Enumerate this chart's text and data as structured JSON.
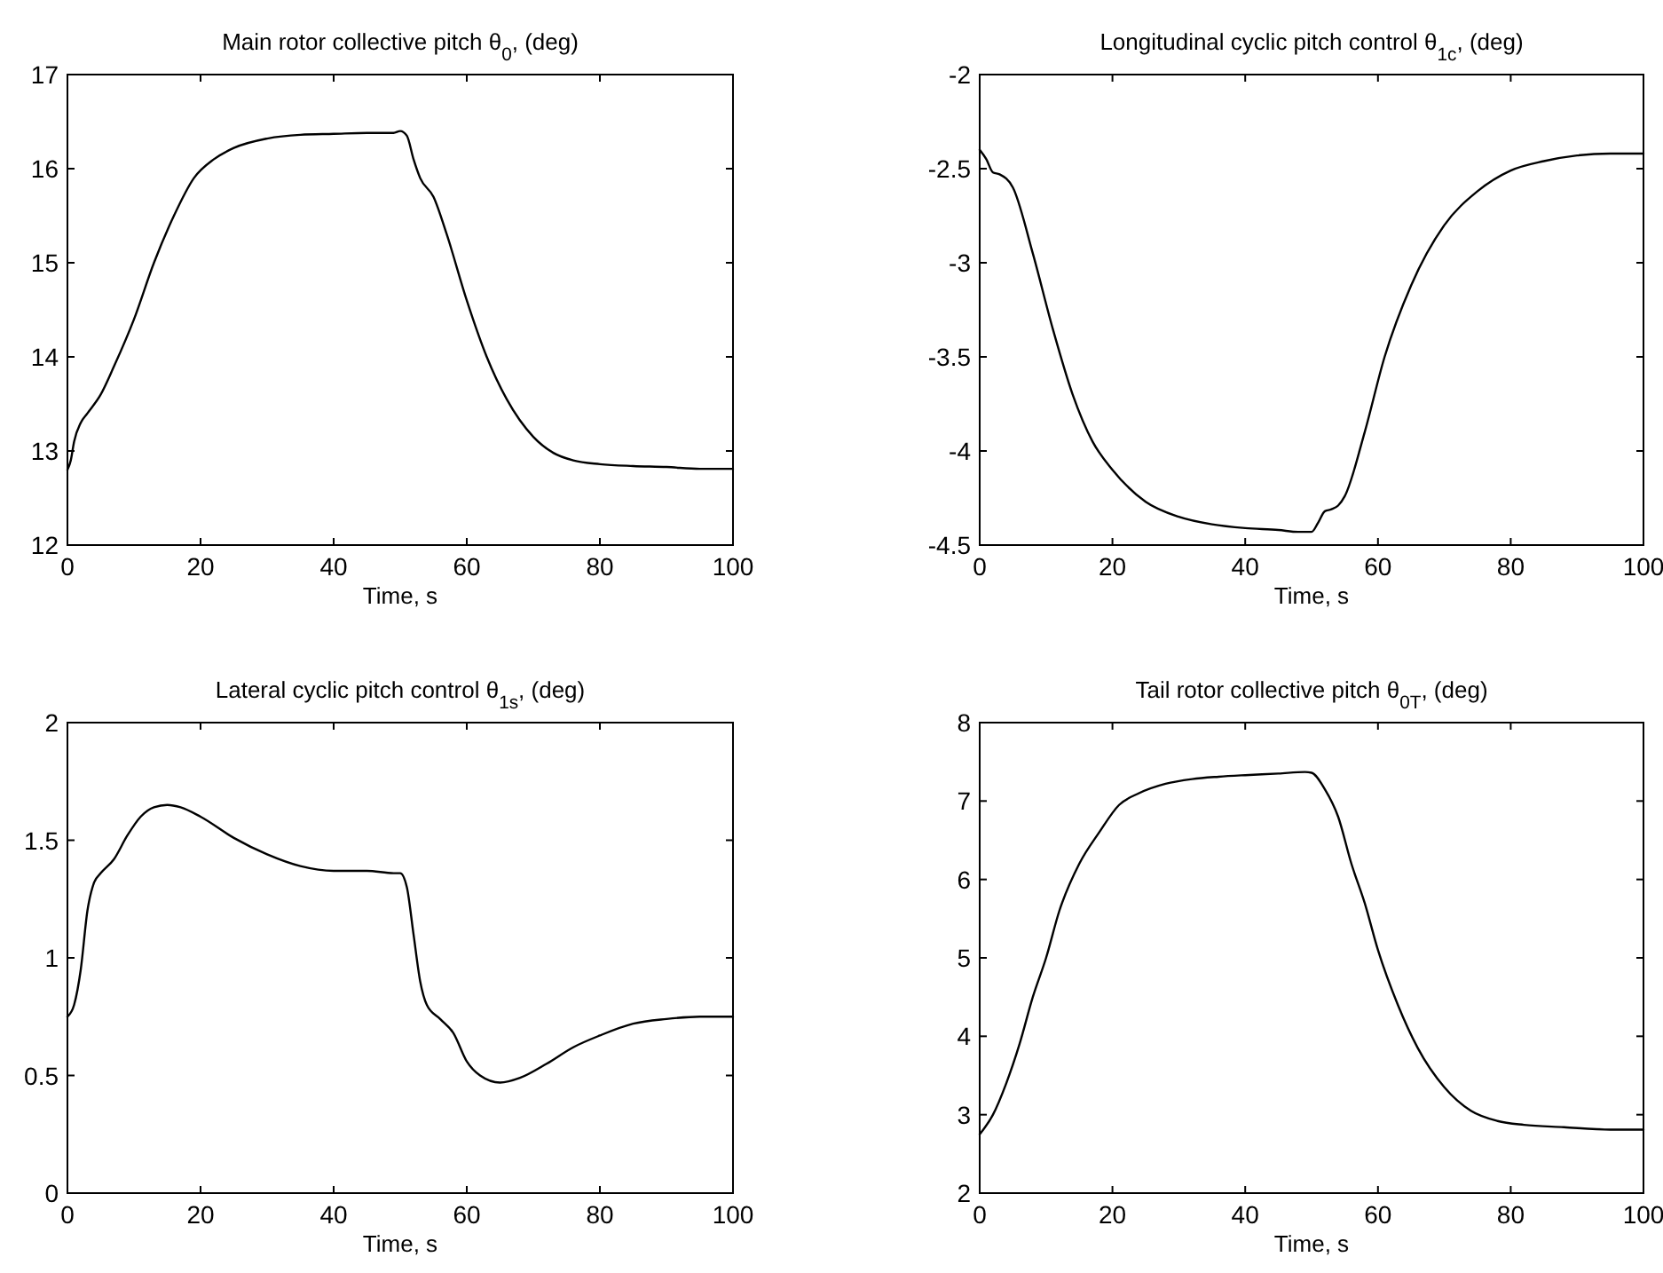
{
  "chart_data": [
    {
      "type": "line",
      "title": "Main rotor collective pitch θ$_{0}$, (deg)",
      "xlabel": "Time, s",
      "xlim": [
        0,
        100
      ],
      "xticks": [
        0,
        20,
        40,
        60,
        80,
        100
      ],
      "ylim": [
        12,
        17
      ],
      "yticks": [
        12,
        13,
        14,
        15,
        16,
        17
      ],
      "grid": false,
      "series": [
        {
          "color": "#000000",
          "x": [
            0,
            0.5,
            1,
            2,
            3,
            5,
            7,
            10,
            13,
            16,
            19,
            22,
            25,
            30,
            35,
            40,
            45,
            49,
            50,
            51,
            52,
            53,
            55,
            57,
            60,
            63,
            66,
            70,
            73,
            76,
            80,
            85,
            90,
            95,
            100
          ],
          "values": [
            12.8,
            12.9,
            13.1,
            13.3,
            13.4,
            13.6,
            13.9,
            14.4,
            15.0,
            15.5,
            15.9,
            16.1,
            16.22,
            16.32,
            16.36,
            16.37,
            16.38,
            16.38,
            16.4,
            16.35,
            16.1,
            15.9,
            15.7,
            15.3,
            14.6,
            14.0,
            13.55,
            13.15,
            12.98,
            12.9,
            12.86,
            12.84,
            12.83,
            12.81,
            12.81
          ]
        }
      ]
    },
    {
      "type": "line",
      "title": "Longitudinal cyclic pitch control θ$_{1c}$, (deg)",
      "xlabel": "Time, s",
      "xlim": [
        0,
        100
      ],
      "xticks": [
        0,
        20,
        40,
        60,
        80,
        100
      ],
      "ylim": [
        -4.5,
        -2
      ],
      "yticks": [
        -4.5,
        -4,
        -3.5,
        -3,
        -2.5,
        -2
      ],
      "grid": false,
      "series": [
        {
          "color": "#000000",
          "x": [
            0,
            1,
            2,
            3,
            5,
            8,
            11,
            14,
            17,
            20,
            25,
            30,
            35,
            40,
            45,
            48,
            50,
            51,
            52,
            53,
            54,
            55,
            58,
            61,
            65,
            70,
            75,
            80,
            85,
            90,
            95,
            100
          ],
          "values": [
            -2.4,
            -2.45,
            -2.52,
            -2.53,
            -2.6,
            -2.95,
            -3.35,
            -3.7,
            -3.95,
            -4.1,
            -4.27,
            -4.35,
            -4.39,
            -4.41,
            -4.42,
            -4.43,
            -4.43,
            -4.38,
            -4.32,
            -4.31,
            -4.29,
            -4.24,
            -3.9,
            -3.5,
            -3.12,
            -2.8,
            -2.62,
            -2.51,
            -2.46,
            -2.43,
            -2.42,
            -2.42
          ]
        }
      ]
    },
    {
      "type": "line",
      "title": "Lateral cyclic pitch control θ$_{1s}$, (deg)",
      "xlabel": "Time, s",
      "xlim": [
        0,
        100
      ],
      "xticks": [
        0,
        20,
        40,
        60,
        80,
        100
      ],
      "ylim": [
        0,
        2
      ],
      "yticks": [
        0,
        0.5,
        1,
        1.5,
        2
      ],
      "grid": false,
      "series": [
        {
          "color": "#000000",
          "x": [
            0,
            1,
            2,
            3,
            4,
            5,
            7,
            9,
            11,
            13,
            15,
            17,
            20,
            25,
            30,
            35,
            40,
            45,
            49,
            50,
            51,
            52,
            53,
            54,
            56,
            58,
            60,
            62,
            65,
            68,
            72,
            76,
            80,
            85,
            90,
            95,
            100
          ],
          "values": [
            0.75,
            0.8,
            0.95,
            1.2,
            1.32,
            1.36,
            1.42,
            1.52,
            1.6,
            1.64,
            1.65,
            1.64,
            1.6,
            1.51,
            1.44,
            1.39,
            1.37,
            1.37,
            1.36,
            1.36,
            1.3,
            1.1,
            0.9,
            0.8,
            0.74,
            0.68,
            0.56,
            0.5,
            0.47,
            0.49,
            0.55,
            0.62,
            0.67,
            0.72,
            0.74,
            0.75,
            0.75
          ]
        }
      ]
    },
    {
      "type": "line",
      "title": "Tail rotor collective pitch θ$_{0T}$, (deg)",
      "xlabel": "Time, s",
      "xlim": [
        0,
        100
      ],
      "xticks": [
        0,
        20,
        40,
        60,
        80,
        100
      ],
      "ylim": [
        2,
        8
      ],
      "yticks": [
        2,
        3,
        4,
        5,
        6,
        7,
        8
      ],
      "grid": false,
      "series": [
        {
          "color": "#000000",
          "x": [
            0,
            2,
            4,
            6,
            8,
            10,
            12,
            15,
            18,
            21,
            24,
            28,
            32,
            36,
            40,
            45,
            49,
            50,
            52,
            54,
            56,
            58,
            60,
            63,
            66,
            70,
            74,
            78,
            82,
            88,
            95,
            100
          ],
          "values": [
            2.75,
            3.0,
            3.4,
            3.9,
            4.5,
            5.0,
            5.6,
            6.2,
            6.6,
            6.95,
            7.1,
            7.22,
            7.28,
            7.31,
            7.33,
            7.35,
            7.37,
            7.36,
            7.15,
            6.8,
            6.2,
            5.7,
            5.1,
            4.4,
            3.85,
            3.35,
            3.05,
            2.92,
            2.87,
            2.84,
            2.81,
            2.81
          ]
        }
      ]
    }
  ]
}
